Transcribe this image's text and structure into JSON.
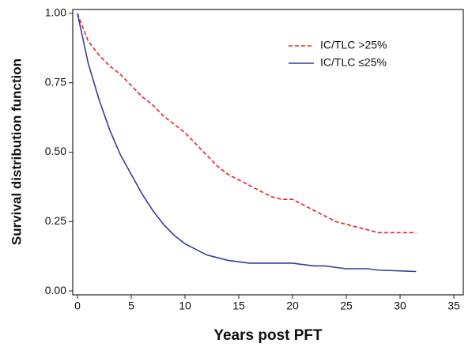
{
  "chart_data": {
    "type": "line",
    "xlabel": "Years post PFT",
    "ylabel": "Survival distribution function",
    "x": [
      0,
      1,
      2,
      3,
      4,
      5,
      6,
      7,
      8,
      9,
      10,
      11,
      12,
      13,
      14,
      15,
      16,
      17,
      18,
      19,
      20,
      21,
      22,
      23,
      24,
      25,
      26,
      27,
      28,
      31.5
    ],
    "series": [
      {
        "name": "IC/TLC >25%",
        "color": "#e8212a",
        "dashed": true,
        "values": [
          1.0,
          0.9,
          0.85,
          0.81,
          0.78,
          0.74,
          0.7,
          0.67,
          0.63,
          0.6,
          0.57,
          0.53,
          0.49,
          0.45,
          0.42,
          0.4,
          0.38,
          0.36,
          0.34,
          0.33,
          0.33,
          0.31,
          0.29,
          0.27,
          0.25,
          0.24,
          0.23,
          0.22,
          0.21,
          0.21
        ]
      },
      {
        "name": "IC/TLC ≤25%",
        "color": "#3a3d9a",
        "dashed": false,
        "values": [
          1.0,
          0.82,
          0.69,
          0.58,
          0.49,
          0.42,
          0.35,
          0.29,
          0.24,
          0.2,
          0.17,
          0.15,
          0.13,
          0.12,
          0.11,
          0.105,
          0.1,
          0.1,
          0.1,
          0.1,
          0.1,
          0.095,
          0.09,
          0.09,
          0.085,
          0.08,
          0.08,
          0.08,
          0.075,
          0.07
        ]
      }
    ],
    "xlim": [
      -0.44,
      35.88
    ],
    "ylim": [
      -0.014,
      1.014
    ],
    "xticks": [
      0,
      5,
      10,
      15,
      20,
      25,
      30,
      35
    ],
    "yticks": [
      {
        "value": 0,
        "label": "0.00"
      },
      {
        "value": 0.25,
        "label": "0.25"
      },
      {
        "value": 0.5,
        "label": "0.50"
      },
      {
        "value": 0.75,
        "label": "0.75"
      },
      {
        "value": 1,
        "label": "1.00"
      }
    ],
    "legend": "upper right"
  }
}
